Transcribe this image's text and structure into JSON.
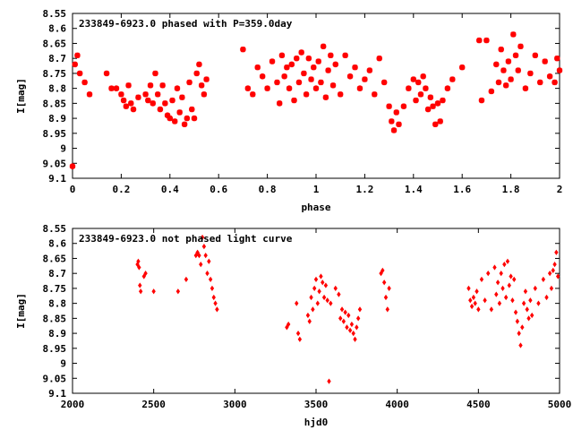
{
  "colors": {
    "points": "#ff0000",
    "axes": "#000000",
    "background": "#ffffff"
  },
  "chart_data": [
    {
      "type": "scatter",
      "title": "233849-6923.0 phased with P=359.0day",
      "xlabel": "phase",
      "ylabel": "I[mag]",
      "xlim": [
        0,
        2
      ],
      "ylim": [
        8.55,
        9.1
      ],
      "y_inverted": true,
      "grid": false,
      "x_ticks": [
        "0",
        "0.2",
        "0.4",
        "0.6",
        "0.8",
        "1",
        "1.2",
        "1.4",
        "1.6",
        "1.8",
        "2"
      ],
      "y_ticks": [
        "8.55",
        "8.6",
        "8.65",
        "8.7",
        "8.75",
        "8.8",
        "8.85",
        "8.9",
        "8.95",
        "9",
        "9.05",
        "9.1"
      ],
      "marker": "star",
      "x": [
        0.0,
        0.01,
        0.02,
        0.03,
        0.05,
        0.07,
        0.14,
        0.16,
        0.18,
        0.2,
        0.21,
        0.22,
        0.23,
        0.24,
        0.25,
        0.27,
        0.3,
        0.31,
        0.32,
        0.33,
        0.34,
        0.35,
        0.36,
        0.37,
        0.38,
        0.39,
        0.4,
        0.41,
        0.42,
        0.43,
        0.44,
        0.45,
        0.46,
        0.47,
        0.48,
        0.49,
        0.5,
        0.51,
        0.52,
        0.53,
        0.54,
        0.55,
        0.7,
        0.72,
        0.74,
        0.76,
        0.78,
        0.8,
        0.82,
        0.84,
        0.85,
        0.86,
        0.87,
        0.88,
        0.89,
        0.9,
        0.91,
        0.92,
        0.93,
        0.94,
        0.95,
        0.96,
        0.97,
        0.98,
        0.99,
        1.0,
        1.01,
        1.02,
        1.03,
        1.04,
        1.05,
        1.06,
        1.07,
        1.08,
        1.1,
        1.12,
        1.14,
        1.16,
        1.18,
        1.2,
        1.22,
        1.24,
        1.26,
        1.28,
        1.3,
        1.31,
        1.32,
        1.33,
        1.34,
        1.36,
        1.38,
        1.4,
        1.41,
        1.42,
        1.43,
        1.44,
        1.45,
        1.46,
        1.47,
        1.48,
        1.49,
        1.5,
        1.51,
        1.52,
        1.54,
        1.56,
        1.6,
        1.67,
        1.68,
        1.7,
        1.72,
        1.74,
        1.75,
        1.76,
        1.77,
        1.78,
        1.79,
        1.8,
        1.81,
        1.82,
        1.83,
        1.84,
        1.86,
        1.88,
        1.9,
        1.92,
        1.94,
        1.96,
        1.98,
        1.99,
        2.0
      ],
      "y": [
        9.06,
        8.72,
        8.69,
        8.75,
        8.78,
        8.82,
        8.75,
        8.8,
        8.8,
        8.82,
        8.84,
        8.86,
        8.79,
        8.85,
        8.87,
        8.83,
        8.82,
        8.84,
        8.79,
        8.85,
        8.75,
        8.82,
        8.87,
        8.79,
        8.85,
        8.89,
        8.9,
        8.84,
        8.91,
        8.8,
        8.88,
        8.83,
        8.92,
        8.9,
        8.78,
        8.87,
        8.9,
        8.75,
        8.72,
        8.79,
        8.82,
        8.77,
        8.67,
        8.8,
        8.82,
        8.73,
        8.76,
        8.8,
        8.71,
        8.78,
        8.85,
        8.69,
        8.76,
        8.73,
        8.8,
        8.72,
        8.84,
        8.7,
        8.78,
        8.68,
        8.75,
        8.82,
        8.7,
        8.77,
        8.73,
        8.8,
        8.71,
        8.78,
        8.66,
        8.83,
        8.74,
        8.69,
        8.79,
        8.72,
        8.82,
        8.69,
        8.76,
        8.73,
        8.8,
        8.77,
        8.74,
        8.82,
        8.7,
        8.78,
        8.86,
        8.91,
        8.94,
        8.88,
        8.92,
        8.86,
        8.8,
        8.77,
        8.84,
        8.78,
        8.82,
        8.76,
        8.8,
        8.87,
        8.83,
        8.86,
        8.92,
        8.85,
        8.91,
        8.84,
        8.8,
        8.77,
        8.73,
        8.64,
        8.84,
        8.64,
        8.81,
        8.72,
        8.78,
        8.67,
        8.74,
        8.79,
        8.71,
        8.77,
        8.62,
        8.69,
        8.74,
        8.66,
        8.8,
        8.75,
        8.69,
        8.78,
        8.71,
        8.76,
        8.78,
        8.7,
        8.74
      ],
      "plot_index": 0
    },
    {
      "type": "scatter",
      "title": "233849-6923.0 not phased light curve",
      "xlabel": "hjd0",
      "ylabel": "I[mag]",
      "xlim": [
        2000,
        5000
      ],
      "ylim": [
        8.55,
        9.1
      ],
      "y_inverted": true,
      "grid": false,
      "x_ticks": [
        "2000",
        "2500",
        "3000",
        "3500",
        "4000",
        "4500",
        "5000"
      ],
      "y_ticks": [
        "8.55",
        "8.6",
        "8.65",
        "8.7",
        "8.75",
        "8.8",
        "8.85",
        "8.9",
        "8.95",
        "9",
        "9.05",
        "9.1"
      ],
      "marker": "diamond",
      "x": [
        2400,
        2405,
        2410,
        2415,
        2420,
        2440,
        2450,
        2500,
        2650,
        2700,
        2760,
        2770,
        2780,
        2790,
        2800,
        2810,
        2820,
        2830,
        2840,
        2850,
        2860,
        2870,
        2880,
        2890,
        3320,
        3330,
        3380,
        3390,
        3400,
        3450,
        3460,
        3470,
        3480,
        3490,
        3500,
        3510,
        3520,
        3530,
        3540,
        3550,
        3560,
        3570,
        3580,
        3590,
        3620,
        3640,
        3650,
        3660,
        3670,
        3680,
        3690,
        3700,
        3710,
        3720,
        3730,
        3740,
        3750,
        3760,
        3770,
        3900,
        3910,
        3920,
        3930,
        3940,
        3950,
        4440,
        4450,
        4460,
        4470,
        4480,
        4490,
        4500,
        4520,
        4540,
        4560,
        4580,
        4600,
        4610,
        4620,
        4630,
        4640,
        4650,
        4660,
        4670,
        4680,
        4690,
        4700,
        4710,
        4720,
        4730,
        4740,
        4750,
        4760,
        4770,
        4780,
        4790,
        4800,
        4810,
        4820,
        4830,
        4850,
        4870,
        4900,
        4920,
        4940,
        4950,
        4960,
        4970,
        4980,
        4990
      ],
      "y": [
        8.67,
        8.66,
        8.68,
        8.74,
        8.76,
        8.71,
        8.7,
        8.76,
        8.76,
        8.72,
        8.64,
        8.63,
        8.64,
        8.67,
        8.58,
        8.61,
        8.64,
        8.7,
        8.66,
        8.72,
        8.75,
        8.78,
        8.8,
        8.82,
        8.88,
        8.87,
        8.8,
        8.9,
        8.92,
        8.84,
        8.86,
        8.78,
        8.82,
        8.75,
        8.72,
        8.8,
        8.76,
        8.71,
        8.73,
        8.78,
        8.74,
        8.79,
        9.06,
        8.8,
        8.75,
        8.77,
        8.85,
        8.82,
        8.86,
        8.83,
        8.88,
        8.84,
        8.89,
        8.87,
        8.9,
        8.92,
        8.88,
        8.85,
        8.82,
        8.7,
        8.69,
        8.73,
        8.78,
        8.82,
        8.75,
        8.75,
        8.79,
        8.81,
        8.78,
        8.8,
        8.76,
        8.82,
        8.72,
        8.79,
        8.7,
        8.82,
        8.68,
        8.77,
        8.73,
        8.8,
        8.7,
        8.75,
        8.67,
        8.78,
        8.66,
        8.74,
        8.71,
        8.79,
        8.72,
        8.83,
        8.86,
        8.9,
        8.94,
        8.88,
        8.8,
        8.76,
        8.82,
        8.85,
        8.79,
        8.84,
        8.75,
        8.8,
        8.72,
        8.78,
        8.7,
        8.75,
        8.69,
        8.67,
        8.63,
        8.71
      ],
      "plot_index": 1
    }
  ]
}
